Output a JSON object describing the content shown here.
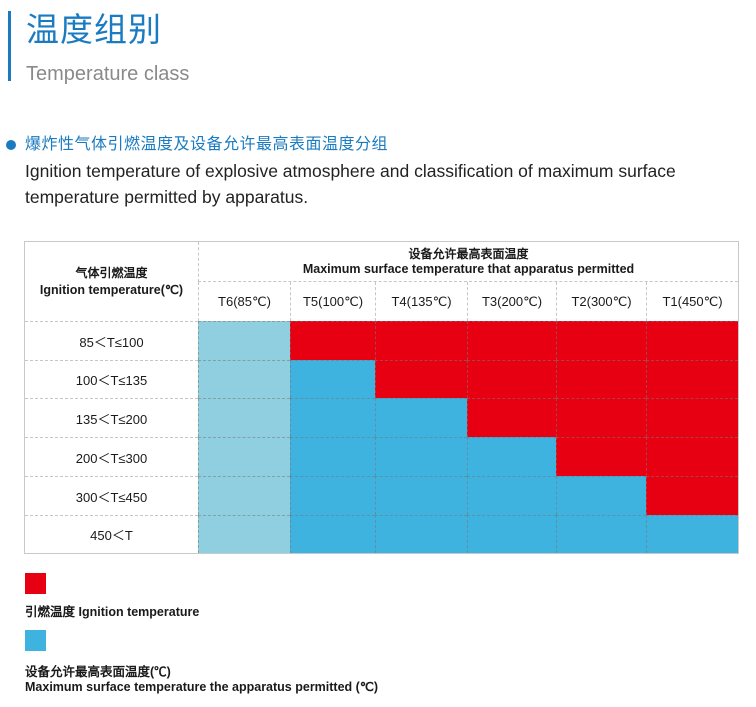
{
  "header": {
    "title_cn": "温度组别",
    "title_en": "Temperature class"
  },
  "section": {
    "subtitle_cn": "爆炸性气体引燃温度及设备允许最高表面温度分组",
    "subtitle_en": "Ignition temperature of explosive atmosphere and classification of maximum surface temperature permitted by apparatus."
  },
  "colors": {
    "accent": "#1a7bc0",
    "ignition_red": "#e60012",
    "permitted_blue": "#3eb3e0",
    "t6_blue": "#8fcfe0"
  },
  "table": {
    "row_header_cn": "气体引燃温度",
    "row_header_en": "Ignition temperature(℃)",
    "col_group_cn": "设备允许最高表面温度",
    "col_group_en": "Maximum surface temperature that apparatus permitted",
    "columns": [
      "T6(85℃)",
      "T5(100℃)",
      "T4(135℃)",
      "T3(200℃)",
      "T2(300℃)",
      "T1(450℃)"
    ],
    "rows": [
      {
        "label": "85＜T≤100",
        "cells": [
          "permitted-t6",
          "ignition",
          "ignition",
          "ignition",
          "ignition",
          "ignition"
        ]
      },
      {
        "label": "100＜T≤135",
        "cells": [
          "permitted-t6",
          "permitted",
          "ignition",
          "ignition",
          "ignition",
          "ignition"
        ]
      },
      {
        "label": "135＜T≤200",
        "cells": [
          "permitted-t6",
          "permitted",
          "permitted",
          "ignition",
          "ignition",
          "ignition"
        ]
      },
      {
        "label": "200＜T≤300",
        "cells": [
          "permitted-t6",
          "permitted",
          "permitted",
          "permitted",
          "ignition",
          "ignition"
        ]
      },
      {
        "label": "300＜T≤450",
        "cells": [
          "permitted-t6",
          "permitted",
          "permitted",
          "permitted",
          "permitted",
          "ignition"
        ]
      },
      {
        "label": "450＜T",
        "cells": [
          "permitted-t6",
          "permitted",
          "permitted",
          "permitted",
          "permitted",
          "permitted"
        ]
      }
    ]
  },
  "legend": {
    "ignition_label": "引燃温度 Ignition temperature",
    "permitted_label_cn": "设备允许最高表面温度(℃)",
    "permitted_label_en": "Maximum surface temperature the apparatus permitted (℃)"
  }
}
